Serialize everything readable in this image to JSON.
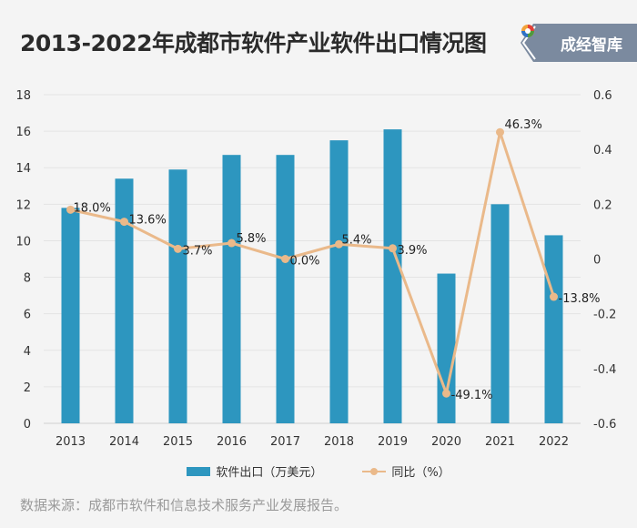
{
  "title": "2013-2022年成都市软件产业软件出口情况图",
  "logo": {
    "text": "成经智库"
  },
  "source": "数据来源：成都市软件和信息技术服务产业发展报告。",
  "legend": {
    "bar": "软件出口（万美元）",
    "line": "同比（%）"
  },
  "colors": {
    "bar": "#2d96bf",
    "line": "#eab98a",
    "logo_bg": "#7b8a9f"
  },
  "chart_data": {
    "type": "bar",
    "title": "2013-2022年成都市软件产业软件出口情况图",
    "categories": [
      "2013",
      "2014",
      "2015",
      "2016",
      "2017",
      "2018",
      "2019",
      "2020",
      "2021",
      "2022"
    ],
    "series": [
      {
        "name": "软件出口（万美元）",
        "type": "bar",
        "axis": "left",
        "values": [
          11.8,
          13.4,
          13.9,
          14.7,
          14.7,
          15.5,
          16.1,
          8.2,
          12.0,
          10.3
        ]
      },
      {
        "name": "同比（%）",
        "type": "line",
        "axis": "right",
        "values": [
          0.18,
          0.136,
          0.037,
          0.058,
          0.0,
          0.054,
          0.039,
          -0.491,
          0.463,
          -0.138
        ],
        "labels": [
          "18.0%",
          "13.6%",
          "3.7%",
          "5.8%",
          "0.0%",
          "5.4%",
          "3.9%",
          "-49.1%",
          "46.3%",
          "-13.8%"
        ]
      }
    ],
    "yleft": {
      "lim": [
        0,
        18
      ],
      "ticks": [
        "0",
        "2",
        "4",
        "6",
        "8",
        "10",
        "12",
        "14",
        "16",
        "18"
      ]
    },
    "yright": {
      "lim": [
        -0.6,
        0.6
      ],
      "ticks": [
        "-0.6",
        "-0.4",
        "-0.2",
        "0",
        "0.2",
        "0.4",
        "0.6"
      ]
    },
    "grid": true,
    "legend_position": "bottom"
  }
}
